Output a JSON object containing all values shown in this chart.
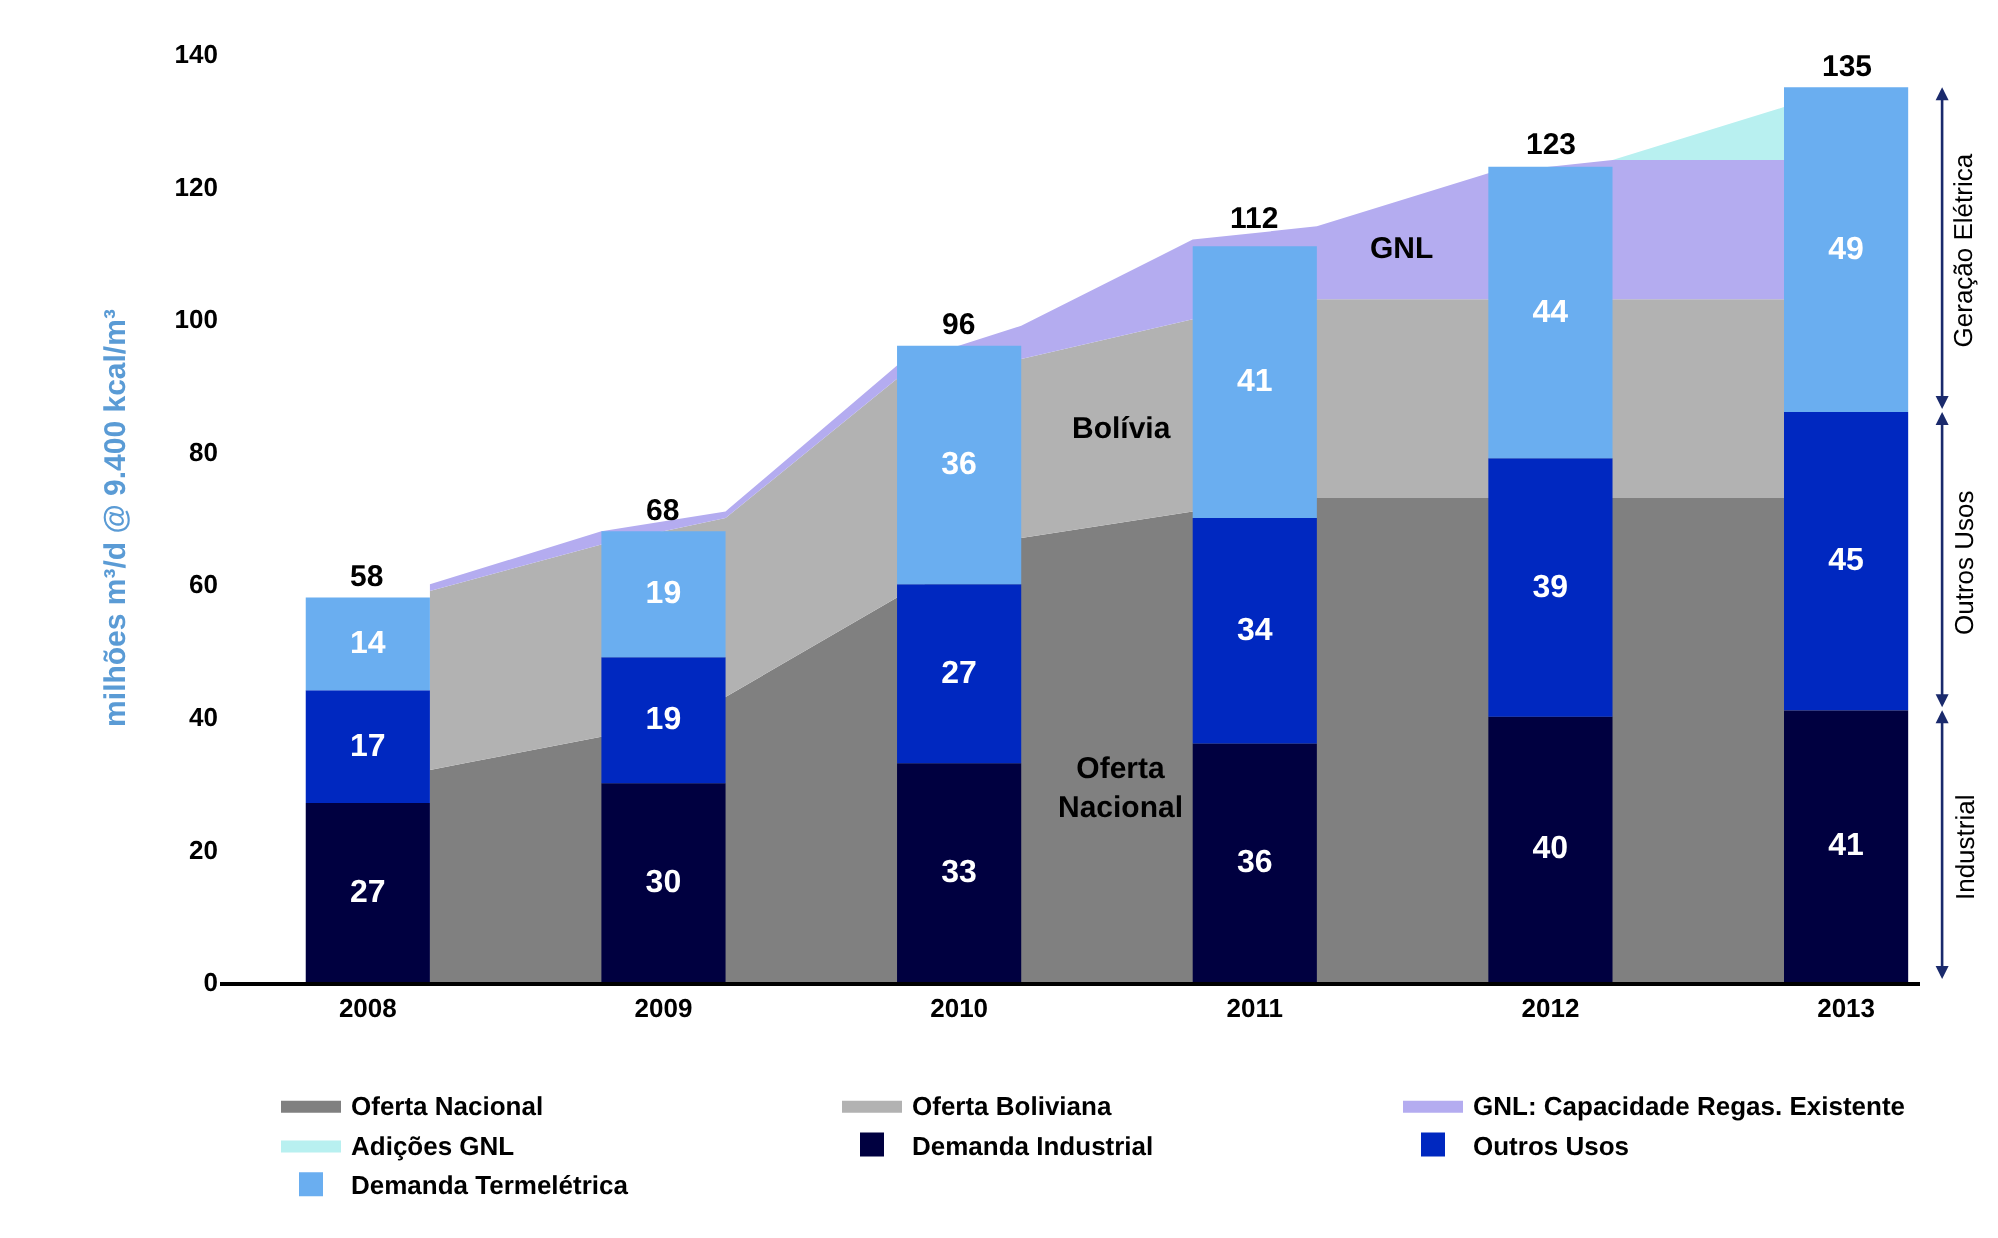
{
  "chart_data": {
    "type": "bar",
    "ylabel": "milhões m³/d @ 9.400 kcal/m³",
    "x": [
      2008,
      2009,
      2010,
      2011,
      2012,
      2013
    ],
    "xlim": [
      2007.5,
      2013.25
    ],
    "xticks": [
      2008,
      2009,
      2010,
      2011,
      2012,
      2013
    ],
    "ylim": [
      0,
      140
    ],
    "yticks": [
      0,
      20,
      40,
      60,
      80,
      100,
      120,
      140
    ],
    "series": [
      {
        "type": "area",
        "name": "Oferta Nacional",
        "color": "#808080",
        "x": [
          2008.21,
          2008.79,
          2009.21,
          2009.79,
          2010.21,
          2010.79,
          2011.21,
          2011.79,
          2012.21,
          2012.79
        ],
        "values": [
          32,
          37,
          43,
          58,
          67,
          71,
          73,
          73,
          73,
          73
        ]
      },
      {
        "type": "area",
        "name": "Oferta Boliviana",
        "color": "#b2b2b2",
        "x": [
          2008.21,
          2008.79,
          2009.21,
          2009.79,
          2010.21,
          2010.79,
          2011.21,
          2011.79,
          2012.21,
          2012.79
        ],
        "values": [
          59,
          66,
          70,
          91,
          94,
          100,
          103,
          103,
          103,
          103
        ]
      },
      {
        "type": "area",
        "name": "GNL: Capacidade Regas. Existente",
        "color": "#b4acf0",
        "x": [
          2008.21,
          2008.79,
          2009.21,
          2009.79,
          2010.21,
          2010.79,
          2011.21,
          2011.79,
          2012.21,
          2012.79
        ],
        "values": [
          60,
          68,
          71,
          93,
          99,
          112,
          114,
          122,
          124,
          124
        ]
      },
      {
        "type": "area",
        "name": "Adições GNL",
        "color": "#b8f0f0",
        "x": [
          2008.21,
          2008.79,
          2009.21,
          2009.79,
          2010.21,
          2010.79,
          2011.21,
          2011.79,
          2012.21,
          2012.79
        ],
        "values": [
          60,
          68,
          71,
          93,
          99,
          112,
          114,
          122,
          124,
          132
        ]
      },
      {
        "name": "Demanda Industrial",
        "color": "#000040",
        "values": [
          27,
          30,
          33,
          36,
          40,
          41
        ],
        "base": [
          0,
          0,
          0,
          0,
          0,
          0
        ],
        "value_labels": [
          "27",
          "30",
          "33",
          "36",
          "40",
          "41"
        ]
      },
      {
        "name": "Outros Usos",
        "color": "#0028c0",
        "values": [
          17,
          19,
          27,
          34,
          39,
          45
        ],
        "base": [
          27,
          30,
          33,
          36,
          40,
          41
        ],
        "value_labels": [
          "17",
          "19",
          "27",
          "34",
          "39",
          "45"
        ]
      },
      {
        "name": "Demanda Termelétrica",
        "color": "#6aaef0",
        "values": [
          14,
          19,
          36,
          41,
          44,
          49
        ],
        "base": [
          44,
          49,
          60,
          70,
          79,
          86
        ],
        "value_labels": [
          "14",
          "19",
          "36",
          "41",
          "44",
          "49"
        ]
      }
    ],
    "annotations": [
      "Oferta\nNacional",
      "Bolívia",
      "GNL",
      "Industrial",
      "Outros Usos",
      "Geração Elétrica",
      {
        "text": "58",
        "x": 2008,
        "y": 58
      },
      {
        "text": "68",
        "x": 2009,
        "y": 68
      },
      {
        "text": "96",
        "x": 2010,
        "y": 96
      },
      {
        "text": "112",
        "x": 2011,
        "y": 112
      },
      {
        "text": "123",
        "x": 2012,
        "y": 123
      },
      {
        "text": "135",
        "x": 2013,
        "y": 135
      }
    ],
    "grid": false,
    "legend": "bottom"
  }
}
